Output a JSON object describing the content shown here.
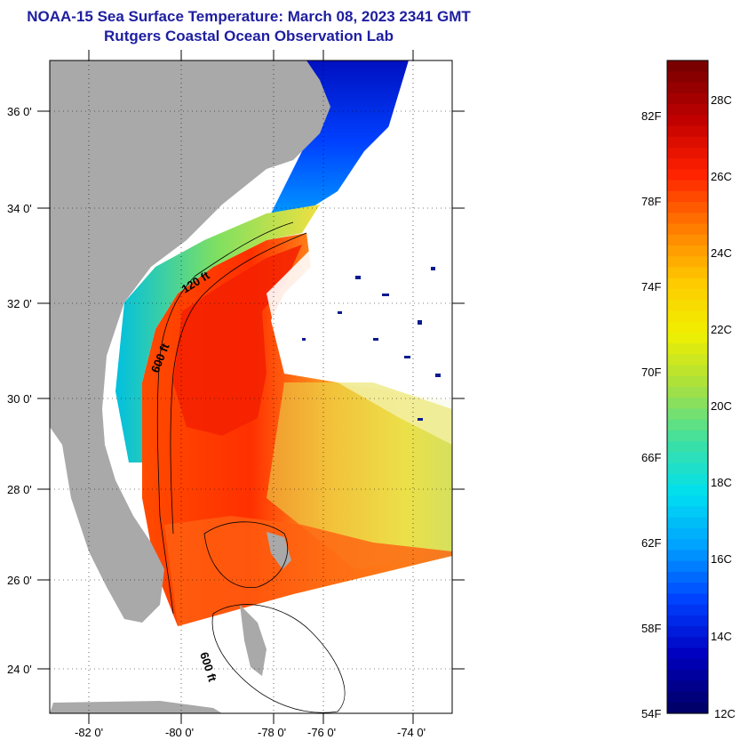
{
  "title": {
    "line1": "NOAA-15 Sea Surface Temperature:  March 08, 2023 2341 GMT",
    "line2": "Rutgers Coastal Ocean Observation Lab"
  },
  "map": {
    "lat_ticks": [
      "36 0'",
      "34 0'",
      "32 0'",
      "30 0'",
      "28 0'",
      "26 0'",
      "24 0'"
    ],
    "lon_ticks": [
      "-82 0'",
      "-80 0'",
      "-78 0'",
      "-76 0'",
      "-74 0'"
    ],
    "isobath_labels": [
      "120 ft",
      "600 ft",
      "600 ft"
    ]
  },
  "colorbar": {
    "f_labels": [
      "82F",
      "78F",
      "74F",
      "70F",
      "66F",
      "62F",
      "58F",
      "54F"
    ],
    "c_labels": [
      "28C",
      "26C",
      "24C",
      "22C",
      "20C",
      "18C",
      "16C",
      "14C",
      "12C"
    ],
    "colors": [
      "#7a0000",
      "#c00000",
      "#ff2000",
      "#ff7a00",
      "#ffc800",
      "#f0f000",
      "#a8e040",
      "#40e0a0",
      "#00e0f0",
      "#00a0ff",
      "#0040ff",
      "#0000c0",
      "#00006a"
    ]
  },
  "colors": {
    "land": "#a9a9a9",
    "title": "#1e1ea0"
  }
}
